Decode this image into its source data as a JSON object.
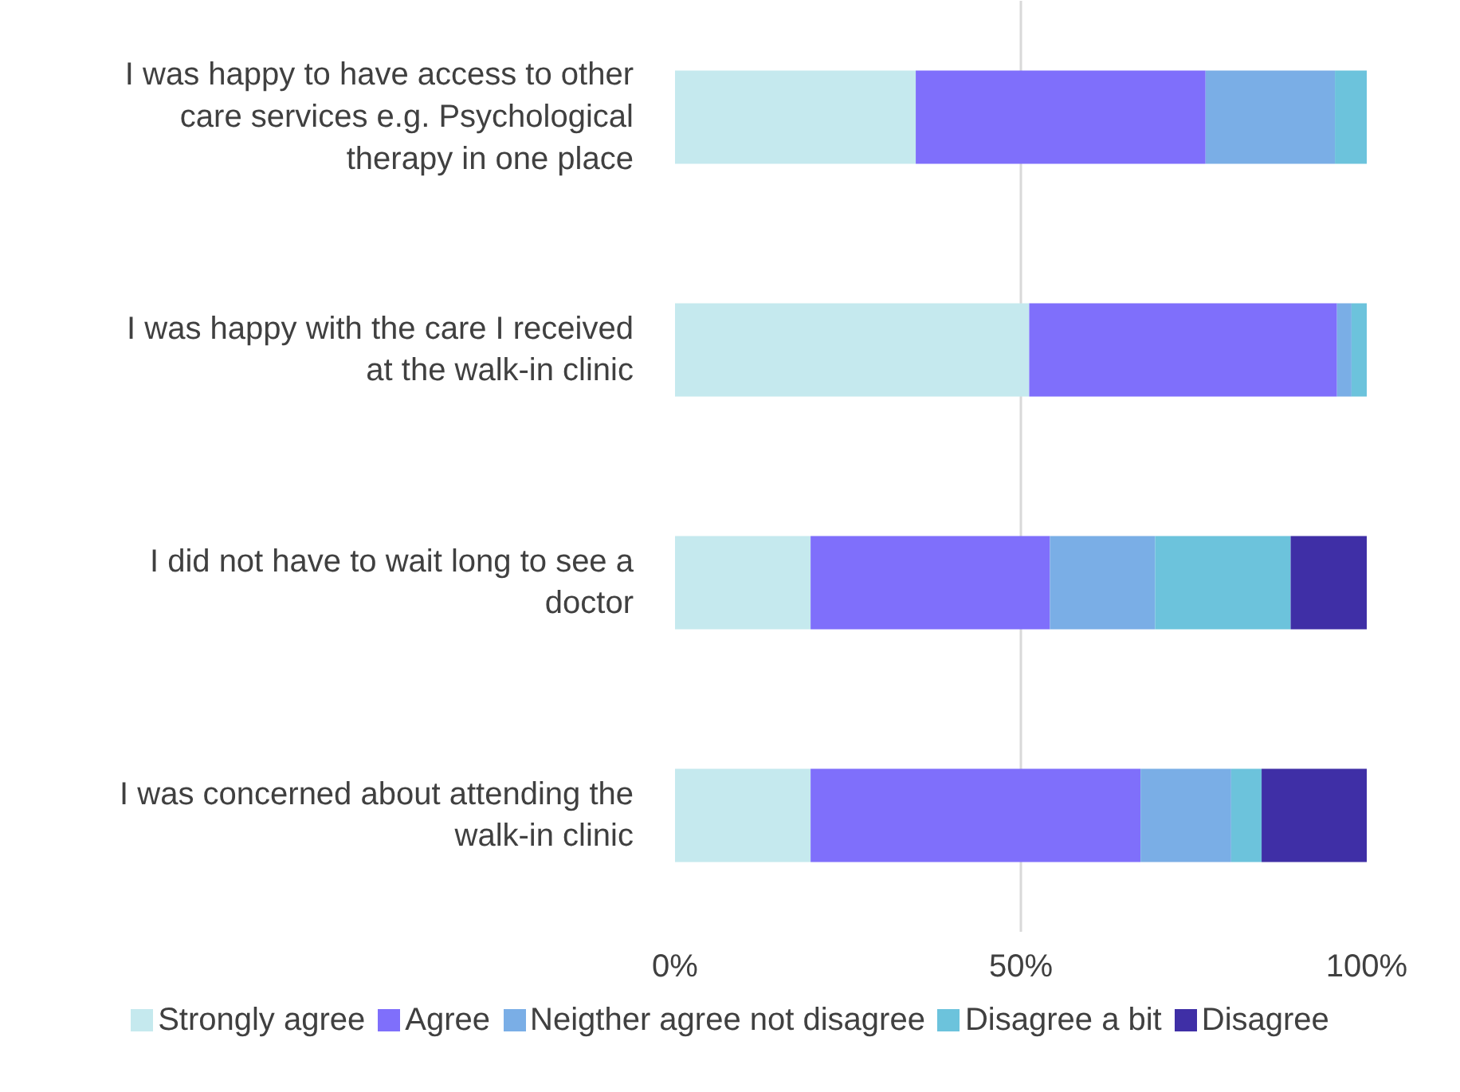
{
  "chart_data": {
    "type": "bar",
    "orientation": "horizontal",
    "stacked": true,
    "categories": [
      "I was happy to have access to other care services e.g. Psychological therapy in one place",
      "I was happy with the care I received at the walk-in clinic",
      "I did not have to wait long to see a doctor",
      "I was concerned about attending the walk-in clinic"
    ],
    "series": [
      {
        "name": "Strongly agree",
        "color": "#c5e9ee",
        "values": [
          34.8,
          51.2,
          19.6,
          19.6
        ]
      },
      {
        "name": "Agree",
        "color": "#7f6ffb",
        "values": [
          41.9,
          44.5,
          34.6,
          47.7
        ]
      },
      {
        "name": "Neigther agree not disagree",
        "color": "#7aaee6",
        "values": [
          18.7,
          2.1,
          15.2,
          13.1
        ]
      },
      {
        "name": "Disagree a bit",
        "color": "#6cc3dc",
        "values": [
          4.6,
          2.3,
          19.6,
          4.4
        ]
      },
      {
        "name": "Disagree",
        "color": "#3f2fa6",
        "values": [
          0,
          0,
          11.1,
          15.2
        ]
      }
    ],
    "xlim": [
      0,
      100
    ],
    "xticks": [
      {
        "value": 0,
        "label": "0%"
      },
      {
        "value": 50,
        "label": "50%"
      },
      {
        "value": 100,
        "label": "100%"
      }
    ],
    "grid": "x",
    "legend": "bottom"
  }
}
